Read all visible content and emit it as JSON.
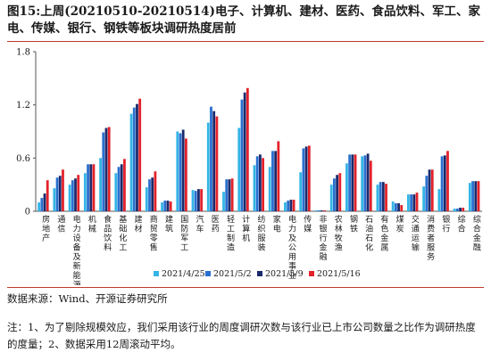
{
  "title": {
    "fig": "图15:",
    "text": "上周(20210510-20210514)电子、计算机、建材、医药、食品饮料、军工、家电、传媒、银行、钢铁等板块调研热度居前"
  },
  "source": "数据来源：Wind、开源证券研究所",
  "note": "注：1、为了剔除规模效应，我们采用该行业的周度调研次数与该行业已上市公司数量之比作为调研热度的度量；2、数据采用12周滚动平均。",
  "chart_data": {
    "type": "bar",
    "title": "",
    "xlabel": "",
    "ylabel": "",
    "ylim": [
      0,
      1.8
    ],
    "yticks": [
      "0",
      "0.6",
      "1.2",
      "1.8"
    ],
    "grid": false,
    "legend_position": "bottom",
    "categories": [
      "房地产",
      "通信",
      "电力设备及新能源",
      "机械",
      "食品饮料",
      "基础化工",
      "建材",
      "商贸零售",
      "建筑",
      "国防军工",
      "汽车",
      "医药",
      "轻工制造",
      "计算机",
      "纺织服装",
      "家电",
      "电力及公用事业",
      "传媒",
      "非银行金融",
      "农林牧渔",
      "钢铁",
      "石油石化",
      "有色金属",
      "煤炭",
      "交通运输",
      "消费者服务",
      "银行",
      "综合",
      "综合金融"
    ],
    "series": [
      {
        "name": "2021/4/25",
        "color": "#33b5e5",
        "values": [
          0.1,
          0.26,
          0.3,
          0.43,
          0.6,
          0.43,
          1.1,
          0.27,
          0.1,
          0.9,
          0.24,
          1.0,
          0.22,
          0.94,
          0.52,
          0.5,
          0.1,
          0.44,
          0.01,
          0.3,
          0.54,
          0.62,
          0.3,
          0.11,
          0.19,
          0.28,
          0.25,
          0.03,
          0.32
        ]
      },
      {
        "name": "2021/5/2",
        "color": "#2a6fcf",
        "values": [
          0.15,
          0.38,
          0.35,
          0.53,
          0.89,
          0.5,
          1.17,
          0.36,
          0.12,
          0.88,
          0.23,
          1.18,
          0.36,
          1.26,
          0.62,
          0.68,
          0.12,
          0.71,
          0.01,
          0.37,
          0.64,
          0.63,
          0.33,
          0.09,
          0.19,
          0.4,
          0.62,
          0.03,
          0.34
        ]
      },
      {
        "name": "2021/5/9",
        "color": "#1b2a6b",
        "values": [
          0.2,
          0.4,
          0.37,
          0.53,
          0.94,
          0.53,
          1.21,
          0.38,
          0.12,
          0.92,
          0.25,
          1.13,
          0.36,
          1.34,
          0.64,
          0.68,
          0.13,
          0.73,
          0.01,
          0.41,
          0.64,
          0.65,
          0.33,
          0.09,
          0.19,
          0.47,
          0.63,
          0.04,
          0.34
        ]
      },
      {
        "name": "2021/5/16",
        "color": "#e3222b",
        "values": [
          0.35,
          0.47,
          0.41,
          0.53,
          0.95,
          0.59,
          1.27,
          0.45,
          0.11,
          0.82,
          0.25,
          1.07,
          0.37,
          1.39,
          0.6,
          0.79,
          0.13,
          0.74,
          0.01,
          0.43,
          0.64,
          0.57,
          0.31,
          0.07,
          0.21,
          0.47,
          0.68,
          0.04,
          0.34
        ]
      }
    ]
  }
}
